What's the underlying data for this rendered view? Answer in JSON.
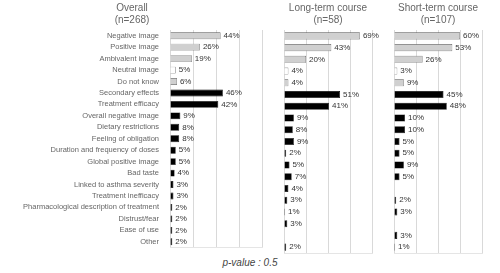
{
  "chart_data": [
    {
      "type": "bar",
      "orientation": "horizontal",
      "title": "Overall\n(n=268)",
      "categories": [
        "Negative image",
        "Positive image",
        "Ambivalent image",
        "Neutral image",
        "Do not know",
        "Secondary effects",
        "Treatment efficacy",
        "Overall negative image",
        "Dietary restrictions",
        "Feeling of obligation",
        "Duration and frequency of doses",
        "Global positive image",
        "Bad taste",
        "Linked to asthma severity",
        "Treatment inefficacy",
        "Pharmacological description of treatment",
        "Distrust/fear",
        "Ease of use",
        "Other"
      ],
      "values": [
        44,
        26,
        19,
        5,
        6,
        46,
        42,
        9,
        8,
        8,
        5,
        5,
        4,
        3,
        3,
        2,
        2,
        2,
        2
      ],
      "value_labels": [
        "44%",
        "26%",
        "19%",
        "5%",
        "6%",
        "46%",
        "42%",
        "9%",
        "8%",
        "8%",
        "5%",
        "5%",
        "4%",
        "3%",
        "3%",
        "2%",
        "2%",
        "2%",
        "2%"
      ],
      "colors": [
        "#d0d0d0",
        "#d0d0d0",
        "#d0d0d0",
        "#ffffff",
        "#d0d0d0",
        "#000000",
        "#000000",
        "#000000",
        "#000000",
        "#000000",
        "#000000",
        "#000000",
        "#000000",
        "#000000",
        "#000000",
        "#000000",
        "#000000",
        "#000000",
        "#000000"
      ],
      "xlim": [
        0,
        80
      ],
      "xticks": [
        0,
        20,
        40,
        60,
        80
      ],
      "grid": true,
      "data_labels": true,
      "tick_labels": "y"
    },
    {
      "type": "bar",
      "orientation": "horizontal",
      "title": "Long-term course\n(n=58)",
      "categories": [
        "Negative image",
        "Positive image",
        "Ambivalent image",
        "Neutral image",
        "Do not know",
        "Secondary effects",
        "Treatment efficacy",
        "Overall negative image",
        "Dietary restrictions",
        "Feeling of obligation",
        "Duration and frequency of doses",
        "Global positive image",
        "Bad taste",
        "Linked to asthma severity",
        "Treatment inefficacy",
        "Pharmacological description of treatment",
        "Distrust/fear",
        "Ease of use",
        "Other"
      ],
      "values": [
        69,
        43,
        20,
        4,
        4,
        51,
        41,
        9,
        8,
        9,
        2,
        5,
        7,
        4,
        3,
        1,
        3,
        0,
        2
      ],
      "value_labels": [
        "69%",
        "43%",
        "20%",
        "4%",
        "4%",
        "51%",
        "41%",
        "9%",
        "8%",
        "9%",
        "2%",
        "5%",
        "7%",
        "4%",
        "3%",
        "1%",
        "3%",
        null,
        "2%"
      ],
      "colors": [
        "#d0d0d0",
        "#d0d0d0",
        "#d0d0d0",
        "#ffffff",
        "#d0d0d0",
        "#000000",
        "#000000",
        "#000000",
        "#000000",
        "#000000",
        "#000000",
        "#000000",
        "#000000",
        "#000000",
        "#000000",
        "#000000",
        "#000000",
        "#000000",
        "#000000"
      ],
      "xlim": [
        0,
        80
      ],
      "xticks": [
        0,
        20,
        40,
        60,
        80
      ],
      "grid": true,
      "data_labels": true,
      "tick_labels": false,
      "annotation": "p-value : 0.5"
    },
    {
      "type": "bar",
      "orientation": "horizontal",
      "title": "Short-term course\n(n=107)",
      "categories": [
        "Negative image",
        "Positive image",
        "Ambivalent image",
        "Neutral image",
        "Do not know",
        "Secondary effects",
        "Treatment efficacy",
        "Overall negative image",
        "Dietary restrictions",
        "Feeling of obligation",
        "Duration and frequency of doses",
        "Global positive image",
        "Bad taste",
        "Linked to asthma severity",
        "Treatment inefficacy",
        "Pharmacological description of treatment",
        "Distrust/fear",
        "Ease of use",
        "Other"
      ],
      "values": [
        60,
        53,
        26,
        3,
        9,
        45,
        48,
        10,
        10,
        5,
        5,
        9,
        5,
        0,
        2,
        3,
        0,
        3,
        1
      ],
      "value_labels": [
        "60%",
        "53%",
        "26%",
        "3%",
        "9%",
        "45%",
        "48%",
        "10%",
        "10%",
        "5%",
        "5%",
        "9%",
        "5%",
        null,
        "2%",
        "3%",
        null,
        "3%",
        "1%"
      ],
      "colors": [
        "#d0d0d0",
        "#d0d0d0",
        "#d0d0d0",
        "#ffffff",
        "#d0d0d0",
        "#000000",
        "#000000",
        "#000000",
        "#000000",
        "#000000",
        "#000000",
        "#000000",
        "#000000",
        "#000000",
        "#000000",
        "#000000",
        "#000000",
        "#000000",
        "#000000"
      ],
      "xlim": [
        0,
        80
      ],
      "xticks": [
        0,
        20,
        40,
        60,
        80
      ],
      "grid": true,
      "data_labels": true,
      "tick_labels": false
    }
  ]
}
